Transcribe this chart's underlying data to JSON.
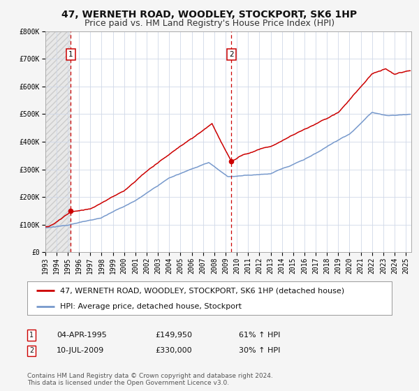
{
  "title": "47, WERNETH ROAD, WOODLEY, STOCKPORT, SK6 1HP",
  "subtitle": "Price paid vs. HM Land Registry's House Price Index (HPI)",
  "ylim": [
    0,
    800000
  ],
  "xlim_start": 1993.0,
  "xlim_end": 2025.5,
  "bg_color": "#f5f5f5",
  "plot_bg_color": "#ffffff",
  "plot_bg_color_shaded": "#e8e8e8",
  "grid_color": "#d0d8e8",
  "red_line_color": "#cc0000",
  "blue_line_color": "#7799cc",
  "sale1_x": 1995.27,
  "sale1_y": 149950,
  "sale2_x": 2009.52,
  "sale2_y": 330000,
  "vline_color": "#cc0000",
  "legend_label_red": "47, WERNETH ROAD, WOODLEY, STOCKPORT, SK6 1HP (detached house)",
  "legend_label_blue": "HPI: Average price, detached house, Stockport",
  "sale1_date": "04-APR-1995",
  "sale1_price": "£149,950",
  "sale1_hpi": "61% ↑ HPI",
  "sale2_date": "10-JUL-2009",
  "sale2_price": "£330,000",
  "sale2_hpi": "30% ↑ HPI",
  "footnote": "Contains HM Land Registry data © Crown copyright and database right 2024.\nThis data is licensed under the Open Government Licence v3.0.",
  "title_fontsize": 10,
  "subtitle_fontsize": 9,
  "tick_fontsize": 7,
  "legend_fontsize": 8,
  "annotation_fontsize": 8,
  "footnote_fontsize": 6.5
}
